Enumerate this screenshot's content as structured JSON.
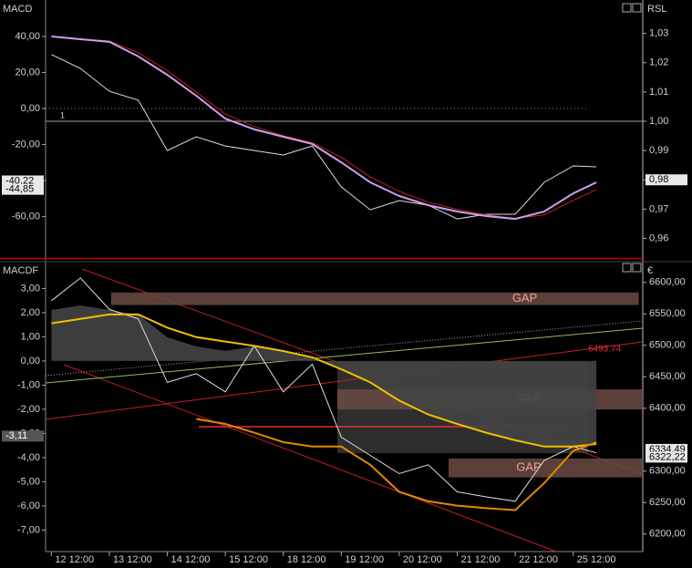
{
  "chart_data": [
    {
      "type": "line",
      "title": "MACD",
      "y2_title": "RSL",
      "xlim": [
        -0.1,
        10.2
      ],
      "x": [
        0,
        0.5,
        1,
        1.5,
        2,
        2.5,
        3,
        3.5,
        4,
        4.5,
        5,
        5.5,
        6,
        6.5,
        7,
        7.5,
        8,
        8.5,
        9,
        9.4
      ],
      "ylim": [
        -83,
        60.25
      ],
      "yticks": [
        {
          "value": 40,
          "label": "40,00"
        },
        {
          "value": 20,
          "label": "20,00"
        },
        {
          "value": 0,
          "label": "0,00"
        },
        {
          "value": -20,
          "label": "-20,00"
        },
        {
          "value": -40,
          "label": "-40,00"
        },
        {
          "value": -60,
          "label": "-60,00"
        }
      ],
      "y2lim": [
        0.9533,
        1.0414
      ],
      "y2ticks": [
        {
          "value": 1.03,
          "label": "1,03"
        },
        {
          "value": 1.02,
          "label": "1,02"
        },
        {
          "value": 1.01,
          "label": "1,01"
        },
        {
          "value": 1.0,
          "label": "1,00"
        },
        {
          "value": 0.99,
          "label": "0,99"
        },
        {
          "value": 0.98,
          "label": "0,98"
        },
        {
          "value": 0.97,
          "label": "0,97"
        },
        {
          "value": 0.96,
          "label": "0,96"
        }
      ],
      "reference": {
        "value": 1.0,
        "axis": "y2",
        "label": "1"
      },
      "series": [
        {
          "color": "#dddddd",
          "style": "line",
          "axis": "y",
          "values": [
            30,
            22.3,
            9.6,
            4.6,
            -23.3,
            -15.7,
            -20.8,
            -23.3,
            -25.8,
            -20.8,
            -43.5,
            -56.2,
            -51.1,
            -53.7,
            -61.3,
            -58.7,
            -58.7,
            -41,
            -31.9,
            -32.4
          ]
        },
        {
          "color": "#c02020",
          "style": "line",
          "axis": "y",
          "values": [
            40,
            38.5,
            37.5,
            31,
            21,
            9,
            -3,
            -10,
            -15,
            -19,
            -27,
            -38,
            -46,
            -52,
            -56,
            -59,
            -61,
            -59,
            -51,
            -45
          ]
        },
        {
          "color": "#c9a0ee",
          "style": "line",
          "axis": "y",
          "values": [
            40.0,
            38.5,
            37.0,
            28.9,
            18.7,
            7.1,
            -5.6,
            -11.6,
            -15.7,
            -19.7,
            -29.9,
            -41.0,
            -48.6,
            -53.7,
            -57.2,
            -59.7,
            -61.3,
            -57.2,
            -47.1,
            -41.0
          ]
        }
      ],
      "markers": [
        {
          "value": -40.22,
          "label": "-40,22",
          "axis": "y"
        },
        {
          "value": -44.85,
          "label": "-44,85",
          "axis": "y"
        },
        {
          "value": 0.98,
          "label": "0,98",
          "axis": "y2"
        }
      ]
    },
    {
      "type": "line",
      "title": "MACDF",
      "y2_title": "€",
      "xlim": [
        -0.1,
        10.2
      ],
      "x": [
        0,
        0.5,
        1,
        1.5,
        2,
        2.5,
        3,
        3.5,
        4,
        4.5,
        5,
        5.5,
        6,
        6.5,
        7,
        7.5,
        8,
        8.5,
        9,
        9.4
      ],
      "xticks": [
        {
          "value": 0,
          "label": "12 12:00"
        },
        {
          "value": 1,
          "label": "13 12:00"
        },
        {
          "value": 2,
          "label": "14 12:00"
        },
        {
          "value": 3,
          "label": "15 12:00"
        },
        {
          "value": 4,
          "label": "18 12:00"
        },
        {
          "value": 5,
          "label": "19 12:00"
        },
        {
          "value": 6,
          "label": "20 12:00"
        },
        {
          "value": 7,
          "label": "21 12:00"
        },
        {
          "value": 8,
          "label": "22 12:00"
        },
        {
          "value": 9,
          "label": "25 12:00"
        }
      ],
      "ylim": [
        -7.89,
        4.11
      ],
      "yticks": [
        {
          "value": 3,
          "label": "3,00"
        },
        {
          "value": 2,
          "label": "2,00"
        },
        {
          "value": 1,
          "label": "1,00"
        },
        {
          "value": 0,
          "label": "0,00"
        },
        {
          "value": -1,
          "label": "-1,00"
        },
        {
          "value": -2,
          "label": "-2,00"
        },
        {
          "value": -3,
          "label": "-3,00"
        },
        {
          "value": -4,
          "label": "-4,00"
        },
        {
          "value": -5,
          "label": "-5,00"
        },
        {
          "value": -6,
          "label": "-6,00"
        },
        {
          "value": -7,
          "label": "-7,00"
        }
      ],
      "y2lim": [
        6172,
        6633
      ],
      "y2ticks": [
        {
          "value": 6600,
          "label": "6600,00"
        },
        {
          "value": 6550,
          "label": "6550,00"
        },
        {
          "value": 6500,
          "label": "6500,00"
        },
        {
          "value": 6450,
          "label": "6450,00"
        },
        {
          "value": 6400,
          "label": "6400,00"
        },
        {
          "value": 6300,
          "label": "6300,00"
        },
        {
          "value": 6250,
          "label": "6250,00"
        },
        {
          "value": 6200,
          "label": "6200,00"
        }
      ],
      "gaps": [
        {
          "label": "GAP",
          "low": 6564,
          "high": 6584,
          "x0": 1.03,
          "x1": 10.13
        },
        {
          "label": "GAP",
          "low": 6398,
          "high": 6430,
          "x0": 4.93,
          "x1": 10.2
        },
        {
          "label": "GAP",
          "low": 6290,
          "high": 6320,
          "x0": 6.85,
          "x1": 10.2
        }
      ],
      "series": [
        {
          "color": "#444444",
          "style": "area",
          "axis": "y",
          "values": [
            2.11,
            2.3,
            2.11,
            1.92,
            0.98,
            0.6,
            0.42,
            0.6,
            0.42,
            0.15,
            -0.34,
            -0.91,
            -1.66,
            -2.23,
            -2.6,
            -2.98,
            -3.28,
            -3.55,
            -3.55,
            -3.43
          ]
        },
        {
          "color": "#dddddd",
          "style": "line",
          "axis": "y2",
          "values": [
            6571,
            6607,
            6557,
            6542,
            6441,
            6455,
            6426,
            6499,
            6426,
            6470,
            6354,
            6325,
            6296,
            6310,
            6267,
            6259,
            6252,
            6317,
            6339,
            6329
          ]
        },
        {
          "color": "#f0c000",
          "style": "line",
          "axis": "y2",
          "values": [
            6535,
            6542,
            6549,
            6549,
            6528,
            6513,
            6506,
            6499,
            6491,
            6481,
            6462,
            6441,
            6412,
            6390,
            6375,
            6361,
            6349,
            6339,
            6339,
            6343
          ]
        },
        {
          "color": "#e08a00",
          "style": "line",
          "axis": "y2",
          "values": [
            null,
            null,
            null,
            null,
            null,
            6383,
            6375,
            6361,
            6346,
            6339,
            6339,
            6310,
            6267,
            6252,
            6245,
            6241,
            6238,
            6281,
            6332,
            6346
          ]
        }
      ],
      "annotation": {
        "value": 6493.74,
        "label": "6493.74",
        "axis": "y2"
      },
      "markers": [
        {
          "value": -3.11,
          "label": "-3,11",
          "axis": "y"
        },
        {
          "value": 6334.49,
          "label": "6334,49",
          "axis": "y2"
        },
        {
          "value": 6322.22,
          "label": "6322,22",
          "axis": "y2"
        }
      ]
    }
  ]
}
